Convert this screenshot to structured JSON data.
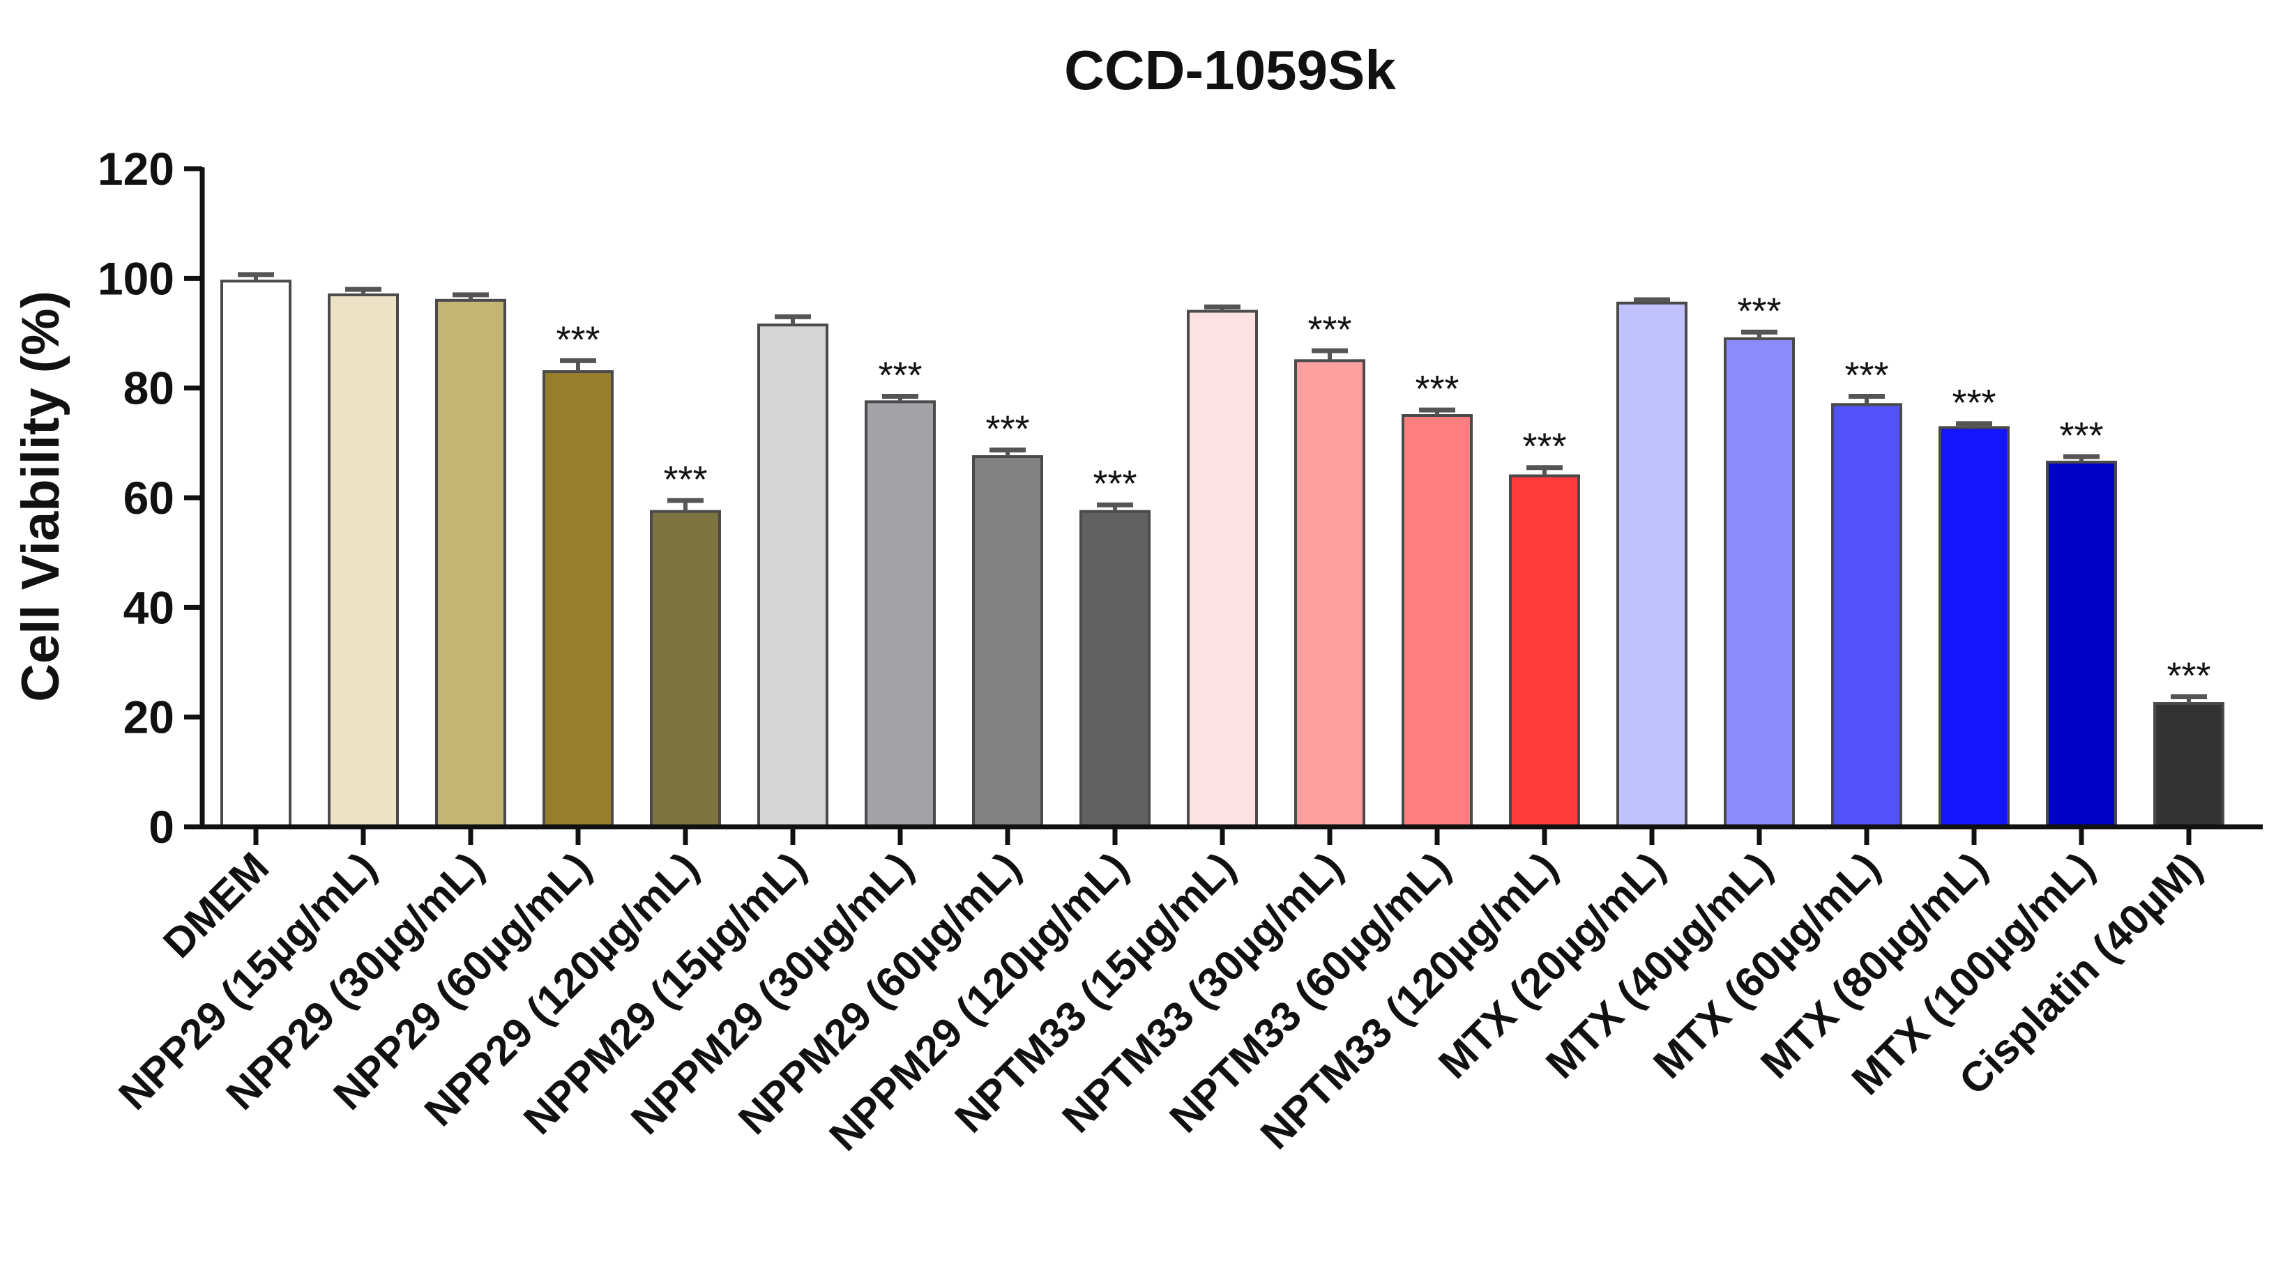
{
  "chart_data": {
    "type": "bar",
    "title": "CCD-1059Sk",
    "xlabel": "",
    "ylabel": "Cell Viability (%)",
    "ylim": [
      0,
      120
    ],
    "yticks": [
      "0",
      "20",
      "40",
      "60",
      "80",
      "100",
      "120"
    ],
    "grid": false,
    "legend": "none",
    "categories": [
      "DMEM",
      "NPP29 (15µg/mL)",
      "NPP29 (30µg/mL)",
      "NPP29 (60µg/mL)",
      "NPP29 (120µg/mL)",
      "NPPM29 (15µg/mL)",
      "NPPM29 (30µg/mL)",
      "NPPM29 (60µg/mL)",
      "NPPM29 (120µg/mL)",
      "NPTM33 (15µg/mL)",
      "NPTM33 (30µg/mL)",
      "NPTM33 (60µg/mL)",
      "NPTM33 (120µg/mL)",
      "MTX (20µg/mL)",
      "MTX (40µg/mL)",
      "MTX (60µg/mL)",
      "MTX (80µg/mL)",
      "MTX (100µg/mL)",
      "Cisplatin (40µM)"
    ],
    "values": [
      99.5,
      97,
      96,
      83,
      57.5,
      91.5,
      77.5,
      67.5,
      57.5,
      94,
      85,
      75,
      64,
      95.5,
      89,
      77,
      72.8,
      66.5,
      22.5
    ],
    "errors": [
      1.2,
      1.0,
      1.0,
      2.0,
      2.0,
      1.5,
      1.0,
      1.2,
      1.2,
      0.8,
      1.8,
      1.0,
      1.5,
      0.6,
      1.2,
      1.5,
      0.7,
      1.0,
      1.2
    ],
    "significance": [
      "",
      "",
      "",
      "***",
      "***",
      "",
      "***",
      "***",
      "***",
      "",
      "***",
      "***",
      "***",
      "",
      "***",
      "***",
      "***",
      "***",
      "***"
    ],
    "colors": [
      "#ffffff",
      "#ece3c6",
      "#c4b574",
      "#957e2c",
      "#7e7440",
      "#d5d5d5",
      "#a3a3a7",
      "#818181",
      "#616161",
      "#fee1e3",
      "#fb9f9f",
      "#fd7e7e",
      "#fe3a3a",
      "#c1c1fd",
      "#8b8bfd",
      "#5353fd",
      "#1414fd",
      "#0000c7",
      "#333333"
    ]
  }
}
